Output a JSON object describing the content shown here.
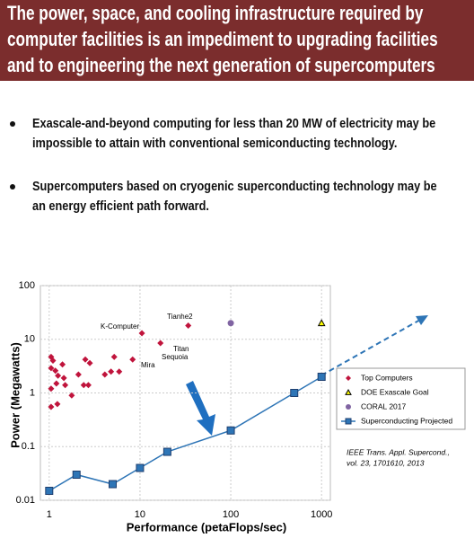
{
  "header": {
    "title_lines": [
      "The power, space, and cooling infrastructure required by",
      "computer facilities is an impediment to upgrading facilities",
      "and to engineering the next generation of supercomputers"
    ]
  },
  "bullets": [
    {
      "lines": [
        "Exascale-and-beyond computing for less than 20 MW of electricity may be",
        "impossible to attain with conventional semiconducting technology."
      ]
    },
    {
      "lines": [
        "Supercomputers based on cryogenic superconducting technology may be",
        "an energy efficient path forward."
      ]
    }
  ],
  "chart_data": {
    "type": "scatter",
    "x_label": "Performance (petaFlops/sec)",
    "y_label": "Power (Megawatts)",
    "xscale": "log",
    "yscale": "log",
    "xlim": [
      0.8,
      1250
    ],
    "ylim": [
      0.01,
      100
    ],
    "xticks": [
      1,
      10,
      100,
      1000
    ],
    "yticks": [
      0.01,
      0.1,
      1,
      10,
      100
    ],
    "grid": true,
    "legend": "right",
    "annotations": [
      "K-Computer",
      "Tianhe2",
      "Titan",
      "Sequoia",
      "Mira"
    ],
    "citation_lines": [
      "IEEE Trans. Appl. Supercond.,",
      "vol. 23, 1701610, 2013"
    ],
    "series": [
      {
        "name": "Top Computers",
        "color": "#c0143c",
        "marker": "diamond",
        "x": [
          1.05,
          1.1,
          1.05,
          1.17,
          1.25,
          1.2,
          1.05,
          1.05,
          1.23,
          1.4,
          1.45,
          1.77,
          1.5,
          2.1,
          2.4,
          2.5,
          2.8,
          2.7,
          4.1,
          4.8,
          5.2,
          5.9,
          8.3,
          10.5,
          16.8,
          34
        ],
        "values": [
          4.7,
          4.0,
          2.9,
          2.6,
          2.1,
          1.5,
          1.2,
          0.55,
          0.62,
          3.4,
          1.9,
          0.9,
          1.4,
          2.2,
          1.4,
          4.2,
          3.6,
          1.4,
          2.2,
          2.5,
          4.7,
          2.5,
          4.2,
          13,
          8.5,
          18
        ]
      },
      {
        "name": "DOE Exascale Goal",
        "color": "#ffff00",
        "marker": "triangle",
        "x": [
          1000
        ],
        "values": [
          20
        ]
      },
      {
        "name": "CORAL 2017",
        "color": "#8064a2",
        "marker": "circle",
        "x": [
          100
        ],
        "values": [
          20
        ]
      },
      {
        "name": "Superconducting Projected",
        "color": "#2e75b6",
        "marker": "square",
        "line": true,
        "x": [
          1,
          2,
          5,
          10,
          20,
          100,
          500,
          1000
        ],
        "values": [
          0.015,
          0.03,
          0.02,
          0.04,
          0.08,
          0.2,
          1,
          2
        ]
      }
    ]
  }
}
